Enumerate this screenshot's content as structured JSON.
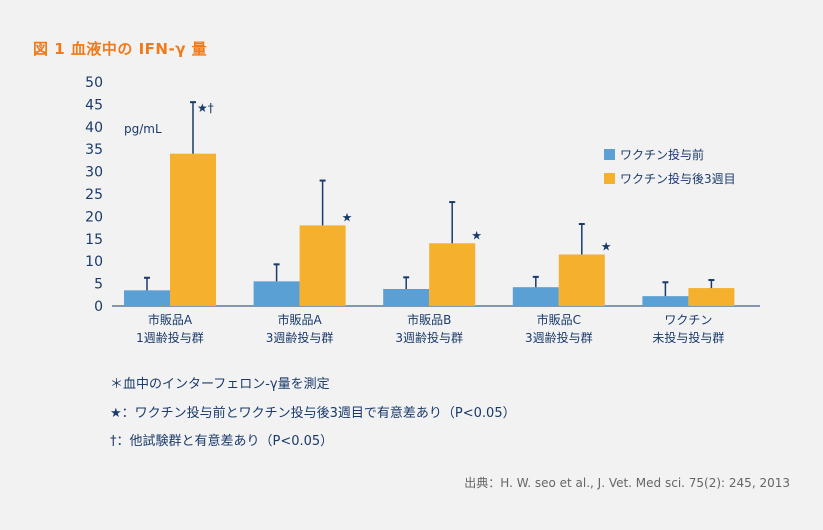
{
  "figure_title": "図 1  血液中の IFN-γ 量",
  "chart_data": {
    "type": "bar",
    "unit": "pg/mL",
    "ylim": [
      0,
      50
    ],
    "yticks": [
      0,
      5,
      10,
      15,
      20,
      25,
      30,
      35,
      40,
      45,
      50
    ],
    "grid": false,
    "legend_position": "right",
    "categories": [
      [
        "市販品A",
        "1週齢投与群"
      ],
      [
        "市販品A",
        "3週齢投与群"
      ],
      [
        "市販品B",
        "3週齢投与群"
      ],
      [
        "市販品C",
        "3週齢投与群"
      ],
      [
        "ワクチン",
        "未投与投与群"
      ]
    ],
    "series": [
      {
        "name": "ワクチン投与前",
        "color": "#5aa0d4",
        "values": [
          3.5,
          5.5,
          3.8,
          4.2,
          2.2
        ],
        "errors": [
          2.8,
          3.8,
          2.6,
          2.3,
          3.1
        ]
      },
      {
        "name": "ワクチン投与後3週目",
        "color": "#f5b02e",
        "values": [
          34,
          18,
          14,
          11.5,
          4
        ],
        "errors": [
          11.5,
          10,
          9.2,
          6.8,
          1.8
        ]
      }
    ],
    "annotations": [
      {
        "category": 0,
        "series": 1,
        "text": "★†"
      },
      {
        "category": 1,
        "series": 1,
        "text": "★"
      },
      {
        "category": 2,
        "series": 1,
        "text": "★"
      },
      {
        "category": 3,
        "series": 1,
        "text": "★"
      }
    ]
  },
  "notes": [
    "＊血中のインターフェロン-γ量を測定",
    "★：ワクチン投与前とワクチン投与後3週目で有意差あり（P<0.05）",
    "†：他試験群と有意差あり（P<0.05）"
  ],
  "source": "出典：H. W. seo et al., J. Vet. Med sci. 75(2): 245, 2013"
}
